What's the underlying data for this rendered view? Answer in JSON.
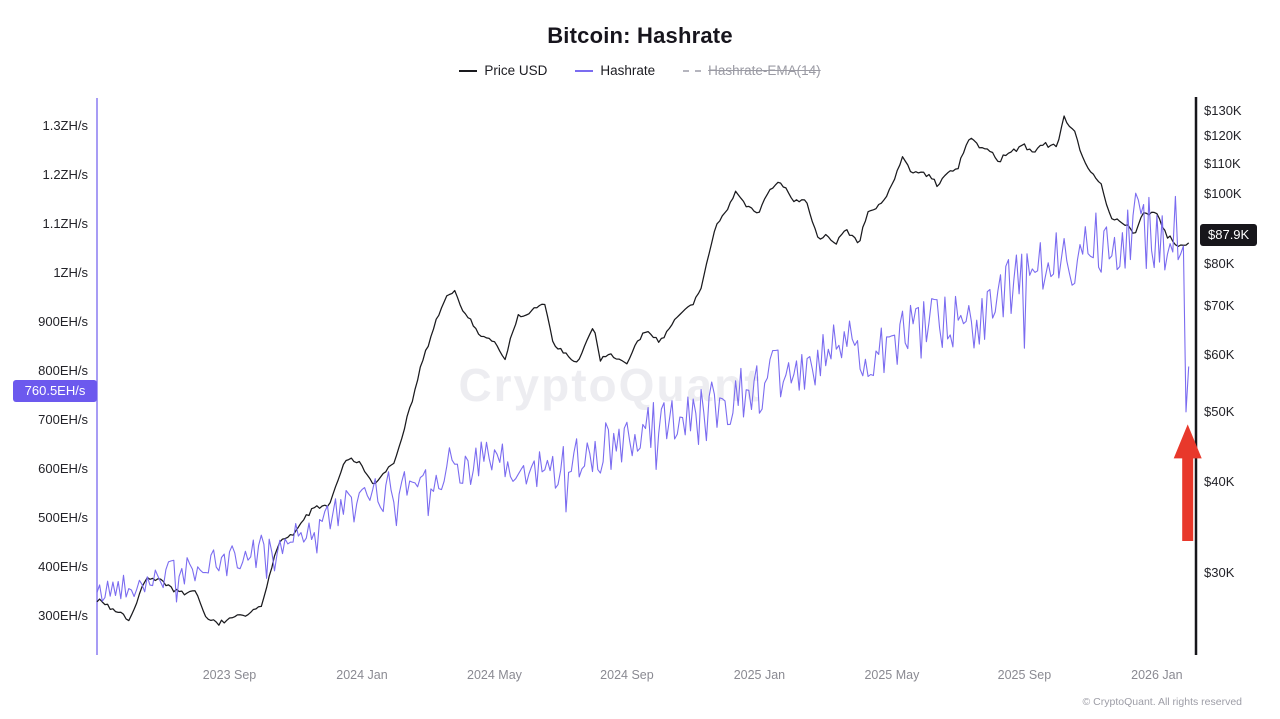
{
  "title": "Bitcoin: Hashrate",
  "legend": {
    "items": [
      {
        "label": "Price USD",
        "color": "#1a1a1e",
        "style": "solid",
        "disabled": false
      },
      {
        "label": "Hashrate",
        "color": "#7b6cf0",
        "style": "solid",
        "disabled": false
      },
      {
        "label": "Hashrate-EMA(14)",
        "color": "#b5b5be",
        "style": "dashed",
        "disabled": true
      }
    ]
  },
  "watermark": "CryptoQuant",
  "footer": "© CryptoQuant. All rights reserved",
  "chart_data": {
    "type": "line",
    "title": "Bitcoin: Hashrate",
    "x_range": [
      0,
      33
    ],
    "x_epoch": "months since 2023-05",
    "x_ticks": [
      {
        "label": "2023 Sep",
        "t": 4
      },
      {
        "label": "2024 Jan",
        "t": 8
      },
      {
        "label": "2024 May",
        "t": 12
      },
      {
        "label": "2024 Sep",
        "t": 16
      },
      {
        "label": "2025 Jan",
        "t": 20
      },
      {
        "label": "2025 May",
        "t": 24
      },
      {
        "label": "2025 Sep",
        "t": 28
      },
      {
        "label": "2026 Jan",
        "t": 32
      }
    ],
    "left_axis": {
      "title": "Hashrate",
      "unit": "EH/s",
      "scale": "linear",
      "range": [
        300,
        1300
      ],
      "ticks": [
        {
          "value": 1300,
          "label": "1.3ZH/s"
        },
        {
          "value": 1200,
          "label": "1.2ZH/s"
        },
        {
          "value": 1100,
          "label": "1.1ZH/s"
        },
        {
          "value": 1000,
          "label": "1ZH/s"
        },
        {
          "value": 900,
          "label": "900EH/s"
        },
        {
          "value": 800,
          "label": "800EH/s"
        },
        {
          "value": 700,
          "label": "700EH/s"
        },
        {
          "value": 600,
          "label": "600EH/s"
        },
        {
          "value": 500,
          "label": "500EH/s"
        },
        {
          "value": 400,
          "label": "400EH/s"
        },
        {
          "value": 300,
          "label": "300EH/s"
        }
      ]
    },
    "right_axis": {
      "title": "Price USD",
      "unit": "$K",
      "scale": "log",
      "range": [
        30,
        130
      ],
      "ticks": [
        {
          "value": 130,
          "label": "$130K"
        },
        {
          "value": 120,
          "label": "$120K"
        },
        {
          "value": 110,
          "label": "$110K"
        },
        {
          "value": 100,
          "label": "$100K"
        },
        {
          "value": 80,
          "label": "$80K"
        },
        {
          "value": 70,
          "label": "$70K"
        },
        {
          "value": 60,
          "label": "$60K"
        },
        {
          "value": 50,
          "label": "$50K"
        },
        {
          "value": 40,
          "label": "$40K"
        },
        {
          "value": 30,
          "label": "$30K"
        }
      ]
    },
    "badges": [
      {
        "axis": "left",
        "label": "760.5EH/s",
        "value": 760.5,
        "bg": "#6c59ee",
        "fg": "#ffffff"
      },
      {
        "axis": "right",
        "label": "$87.9K",
        "value": 87.9,
        "bg": "#17161b",
        "fg": "#ffffff"
      }
    ],
    "series": [
      {
        "name": "Price USD",
        "axis": "right",
        "color": "#1a1a1e",
        "width": 1.25,
        "seed": 7,
        "disabled": false,
        "anchors": [
          [
            0,
            27.8
          ],
          [
            0.5,
            26.8
          ],
          [
            1,
            26.5
          ],
          [
            1.5,
            30.4
          ],
          [
            2,
            30.3
          ],
          [
            2.5,
            29.2
          ],
          [
            3,
            29.0
          ],
          [
            3.3,
            26.1
          ],
          [
            4,
            26.0
          ],
          [
            4.5,
            26.6
          ],
          [
            5,
            27.2
          ],
          [
            5.5,
            34.0
          ],
          [
            6,
            35.0
          ],
          [
            6.5,
            37.3
          ],
          [
            7,
            37.8
          ],
          [
            7.5,
            43.5
          ],
          [
            8,
            42.8
          ],
          [
            8.3,
            40.0
          ],
          [
            9,
            43.0
          ],
          [
            9.5,
            51.5
          ],
          [
            10,
            61.5
          ],
          [
            10.5,
            70.5
          ],
          [
            10.8,
            73.0
          ],
          [
            11,
            69.5
          ],
          [
            11.5,
            64.0
          ],
          [
            12,
            62.0
          ],
          [
            12.3,
            58.0
          ],
          [
            12.7,
            68.0
          ],
          [
            13,
            67.5
          ],
          [
            13.5,
            70.0
          ],
          [
            13.8,
            61.0
          ],
          [
            14,
            61.0
          ],
          [
            14.5,
            57.5
          ],
          [
            15,
            64.5
          ],
          [
            15.2,
            58.0
          ],
          [
            15.5,
            59.5
          ],
          [
            16,
            57.5
          ],
          [
            16.5,
            63.0
          ],
          [
            17,
            60.5
          ],
          [
            17.5,
            67.0
          ],
          [
            18,
            69.5
          ],
          [
            18.3,
            75.5
          ],
          [
            18.7,
            90.5
          ],
          [
            19,
            96.0
          ],
          [
            19.3,
            101.0
          ],
          [
            19.6,
            95.5
          ],
          [
            20,
            94.5
          ],
          [
            20.3,
            102.5
          ],
          [
            20.6,
            104.5
          ],
          [
            21,
            97.5
          ],
          [
            21.4,
            96.5
          ],
          [
            21.8,
            84.5
          ],
          [
            22,
            86.0
          ],
          [
            22.3,
            82.5
          ],
          [
            22.6,
            87.5
          ],
          [
            23,
            85.0
          ],
          [
            23.3,
            94.5
          ],
          [
            23.7,
            97.0
          ],
          [
            24,
            103.5
          ],
          [
            24.3,
            111.5
          ],
          [
            24.6,
            106.5
          ],
          [
            25,
            105.5
          ],
          [
            25.4,
            101.5
          ],
          [
            25.8,
            107.5
          ],
          [
            26,
            108.5
          ],
          [
            26.3,
            118.0
          ],
          [
            26.7,
            115.5
          ],
          [
            27,
            114.0
          ],
          [
            27.2,
            109.5
          ],
          [
            27.6,
            112.5
          ],
          [
            28,
            115.5
          ],
          [
            28.3,
            112.0
          ],
          [
            28.6,
            117.0
          ],
          [
            29,
            114.5
          ],
          [
            29.2,
            125.5
          ],
          [
            29.5,
            121.5
          ],
          [
            29.8,
            110.0
          ],
          [
            30,
            106.5
          ],
          [
            30.3,
            103.0
          ],
          [
            30.6,
            91.5
          ],
          [
            31,
            90.5
          ],
          [
            31.3,
            87.0
          ],
          [
            31.6,
            93.5
          ],
          [
            32,
            94.5
          ],
          [
            32.3,
            88.5
          ],
          [
            32.6,
            86.0
          ],
          [
            33,
            87.9
          ]
        ]
      },
      {
        "name": "Hashrate",
        "axis": "left",
        "color": "#7b6cf0",
        "width": 1.1,
        "seed": 42,
        "disabled": false,
        "anchors": [
          [
            0,
            345
          ],
          [
            1,
            372
          ],
          [
            2,
            385
          ],
          [
            3,
            398
          ],
          [
            4,
            412
          ],
          [
            5,
            440
          ],
          [
            6,
            462
          ],
          [
            7,
            505
          ],
          [
            8,
            535
          ],
          [
            9,
            565
          ],
          [
            10,
            590
          ],
          [
            11,
            612
          ],
          [
            12,
            618
          ],
          [
            12.7,
            588
          ],
          [
            13.5,
            600
          ],
          [
            14,
            612
          ],
          [
            15,
            638
          ],
          [
            16,
            658
          ],
          [
            17,
            695
          ],
          [
            18,
            715
          ],
          [
            19,
            748
          ],
          [
            20,
            775
          ],
          [
            21,
            800
          ],
          [
            22,
            828
          ],
          [
            23,
            848
          ],
          [
            24,
            862
          ],
          [
            25,
            878
          ],
          [
            26,
            900
          ],
          [
            27,
            940
          ],
          [
            28,
            985
          ],
          [
            29,
            1030
          ],
          [
            30,
            1068
          ],
          [
            31,
            1088
          ],
          [
            32,
            1092
          ],
          [
            32.55,
            1080
          ],
          [
            32.8,
            1040
          ],
          [
            32.88,
            700
          ],
          [
            32.94,
            820
          ],
          [
            33,
            760.5
          ]
        ]
      },
      {
        "name": "Hashrate-EMA(14)",
        "axis": "left",
        "color": "#b5b5be",
        "width": 1,
        "seed": 1,
        "disabled": true,
        "anchors": []
      }
    ],
    "annotations": [
      {
        "type": "arrow-up",
        "color": "#e8382b",
        "axis": "left",
        "t": 32.93,
        "from_value": 455,
        "to_value": 693,
        "meaning": "highlights sharp hashrate drop at latest data point"
      }
    ],
    "latest": {
      "hashrate": "760.5EH/s",
      "price": "$87.9K"
    }
  }
}
